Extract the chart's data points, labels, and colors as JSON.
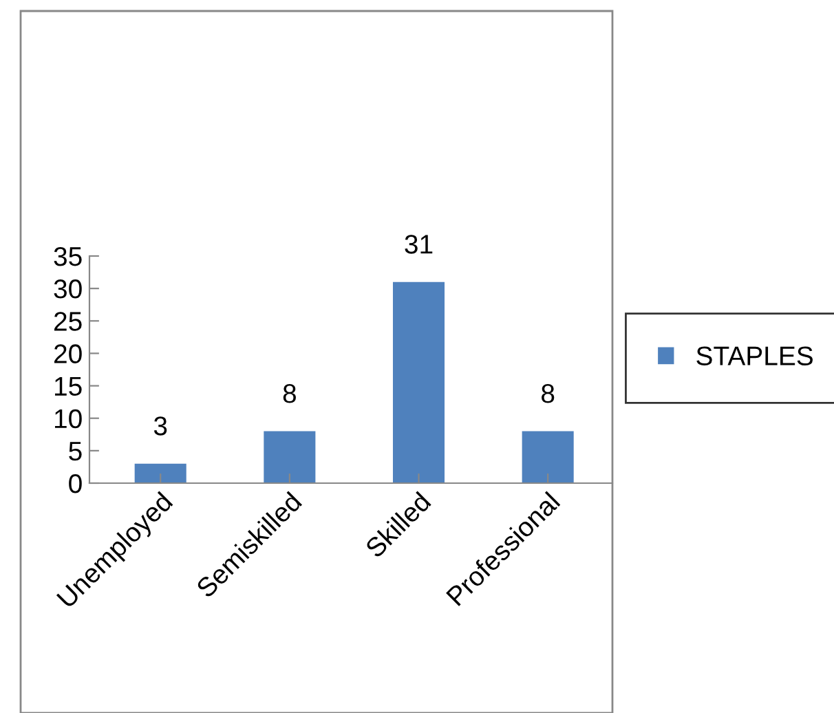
{
  "chart_data": {
    "type": "bar",
    "categories": [
      "Unemployed",
      "Semiskilled",
      "Skilled",
      "Professional"
    ],
    "series": [
      {
        "name": "STAPLES",
        "color": "#4f81bd",
        "values": [
          3,
          8,
          31,
          8
        ]
      }
    ],
    "ylim": [
      0,
      35
    ],
    "yticks": [
      0,
      5,
      10,
      15,
      20,
      25,
      30,
      35
    ],
    "data_labels": true,
    "grid": false,
    "legend": "right"
  }
}
